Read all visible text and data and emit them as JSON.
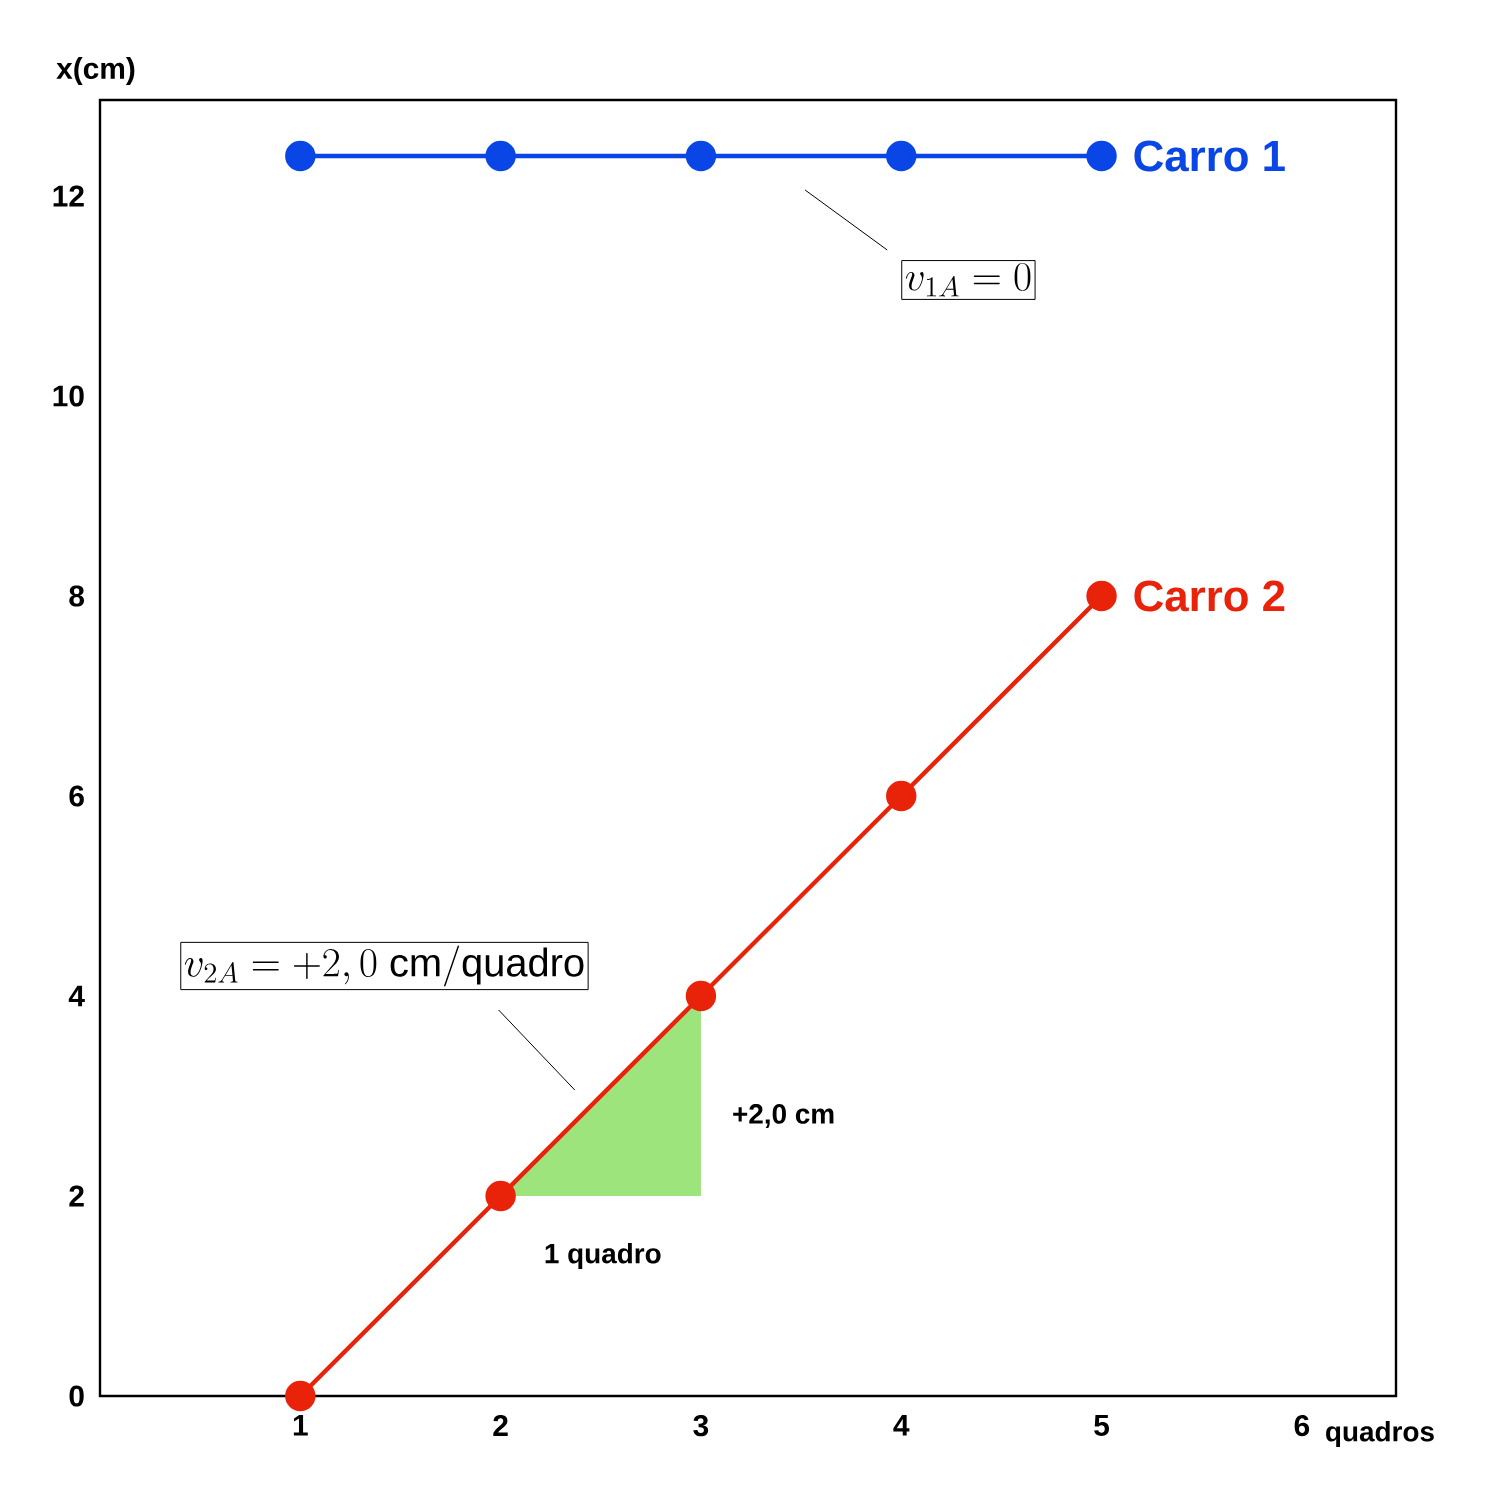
{
  "chart_data": {
    "type": "line",
    "xlabel": "quadros",
    "ylabel": "x(cm)",
    "xlim": [
      0,
      6.47
    ],
    "ylim": [
      0,
      12.96
    ],
    "xticks": [
      1,
      2,
      3,
      4,
      5,
      6
    ],
    "yticks": [
      0,
      2,
      4,
      6,
      8,
      10,
      12
    ],
    "marker": "circle",
    "series": [
      {
        "name": "Carro 1",
        "color": "#0a46e6",
        "x": [
          1,
          2,
          3,
          4,
          5
        ],
        "values": [
          12.4,
          12.4,
          12.4,
          12.4,
          12.4
        ]
      },
      {
        "name": "Carro 2",
        "color": "#e8230a",
        "x": [
          1,
          2,
          3,
          4,
          5
        ],
        "values": [
          0,
          2,
          4,
          6,
          8
        ]
      }
    ],
    "annotations": [
      "v_{1A} = 0",
      "v_{2A} = +2,0\\ \\mathrm{cm/quadro}",
      "+2,0 cm",
      "1 quadro"
    ]
  }
}
